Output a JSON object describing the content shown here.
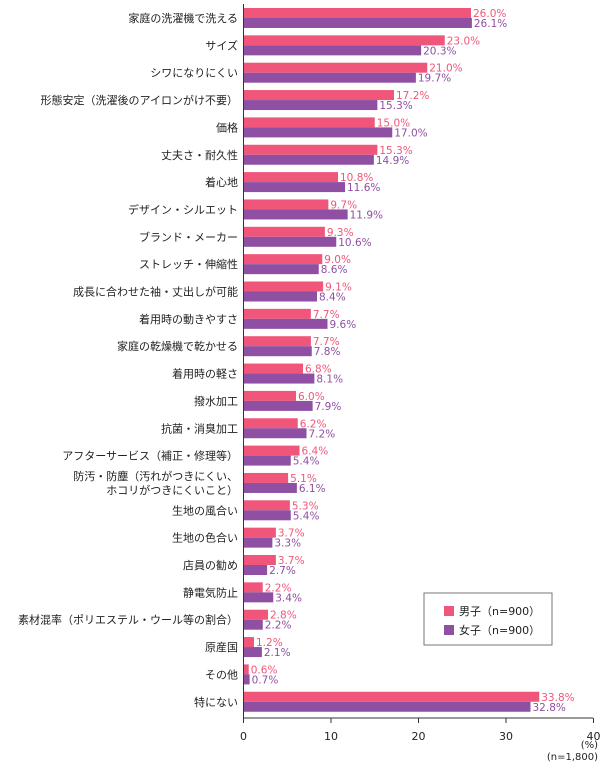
{
  "chart_data": {
    "type": "bar",
    "orientation": "horizontal",
    "categories": [
      "家庭の洗濯機で洗える",
      "サイズ",
      "シワになりにくい",
      "形態安定（洗濯後のアイロンがけ不要）",
      "価格",
      "丈夫さ・耐久性",
      "着心地",
      "デザイン・シルエット",
      "ブランド・メーカー",
      "ストレッチ・伸縮性",
      "成長に合わせた袖・丈出しが可能",
      "着用時の動きやすさ",
      "家庭の乾燥機で乾かせる",
      "着用時の軽さ",
      "撥水加工",
      "抗菌・消臭加工",
      "アフターサービス（補正・修理等）",
      [
        "防汚・防塵（汚れがつきにくい、",
        "ホコリがつきにくいこと）"
      ],
      "生地の風合い",
      "生地の色合い",
      "店員の勧め",
      "静電気防止",
      "素材混率（ポリエステル・ウール等の割合）",
      "原産国",
      "その他",
      "特にない"
    ],
    "series": [
      {
        "name": "男子（n=900）",
        "color": "#f0567a",
        "values": [
          26.0,
          23.0,
          21.0,
          17.2,
          15.0,
          15.3,
          10.8,
          9.7,
          9.3,
          9.0,
          9.1,
          7.7,
          7.7,
          6.8,
          6.0,
          6.2,
          6.4,
          5.1,
          5.3,
          3.7,
          3.7,
          2.2,
          2.8,
          1.2,
          0.6,
          33.8
        ]
      },
      {
        "name": "女子（n=900）",
        "color": "#8f4fa3",
        "values": [
          26.1,
          20.3,
          19.7,
          15.3,
          17.0,
          14.9,
          11.6,
          11.9,
          10.6,
          8.6,
          8.4,
          9.6,
          7.8,
          8.1,
          7.9,
          7.2,
          5.4,
          6.1,
          5.4,
          3.3,
          2.7,
          3.4,
          2.2,
          2.1,
          0.7,
          32.8
        ]
      }
    ],
    "xlim": [
      0,
      40
    ],
    "xticks": [
      0,
      10,
      20,
      30,
      40
    ],
    "unit_label": "(%)",
    "n_label": "(n=1,800)",
    "grid": false,
    "legend_position": "bottom-right"
  }
}
